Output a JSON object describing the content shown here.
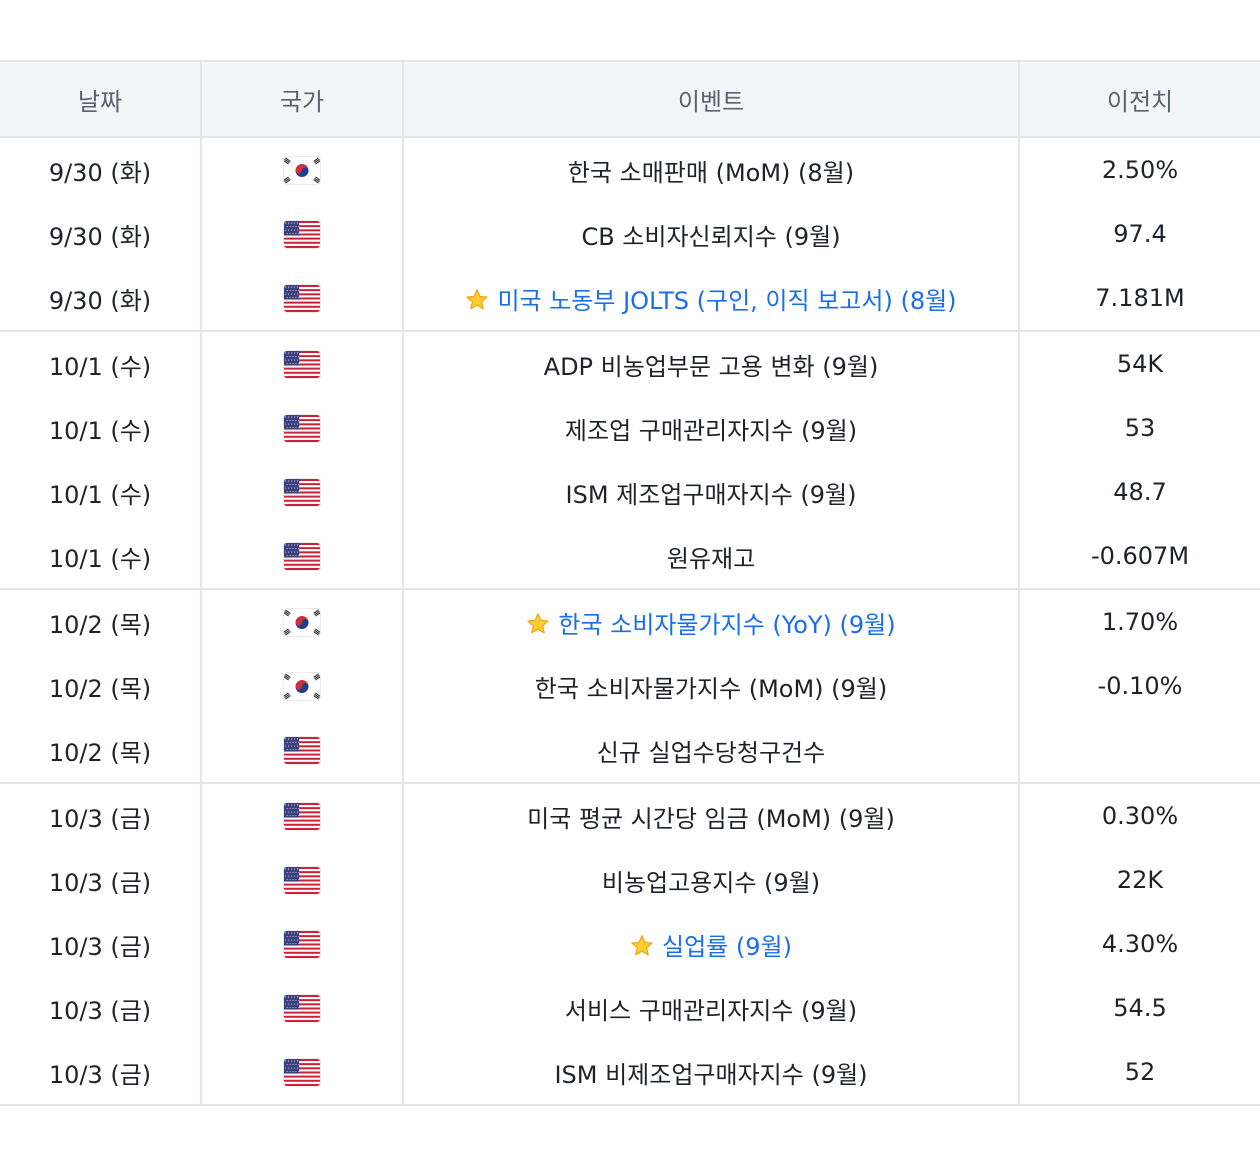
{
  "header": {
    "date": "날짜",
    "country": "국가",
    "event": "이벤트",
    "previous": "이전치"
  },
  "rows": [
    {
      "date": "9/30 (화)",
      "country": "KR",
      "event": "한국 소매판매 (MoM) (8월)",
      "previous": "2.50%",
      "highlight": false,
      "group_start": true
    },
    {
      "date": "9/30 (화)",
      "country": "US",
      "event": "CB 소비자신뢰지수 (9월)",
      "previous": "97.4",
      "highlight": false,
      "group_start": false
    },
    {
      "date": "9/30 (화)",
      "country": "US",
      "event": "미국 노동부 JOLTS (구인, 이직 보고서) (8월)",
      "previous": "7.181M",
      "highlight": true,
      "group_start": false
    },
    {
      "date": "10/1 (수)",
      "country": "US",
      "event": "ADP 비농업부문 고용 변화 (9월)",
      "previous": "54K",
      "highlight": false,
      "group_start": true
    },
    {
      "date": "10/1 (수)",
      "country": "US",
      "event": "제조업 구매관리자지수 (9월)",
      "previous": "53",
      "highlight": false,
      "group_start": false
    },
    {
      "date": "10/1 (수)",
      "country": "US",
      "event": "ISM 제조업구매자지수 (9월)",
      "previous": "48.7",
      "highlight": false,
      "group_start": false
    },
    {
      "date": "10/1 (수)",
      "country": "US",
      "event": "원유재고",
      "previous": "-0.607M",
      "highlight": false,
      "group_start": false
    },
    {
      "date": "10/2 (목)",
      "country": "KR",
      "event": "한국 소비자물가지수 (YoY) (9월)",
      "previous": "1.70%",
      "highlight": true,
      "group_start": true
    },
    {
      "date": "10/2 (목)",
      "country": "KR",
      "event": "한국 소비자물가지수 (MoM) (9월)",
      "previous": "-0.10%",
      "highlight": false,
      "group_start": false
    },
    {
      "date": "10/2 (목)",
      "country": "US",
      "event": "신규 실업수당청구건수",
      "previous": "",
      "highlight": false,
      "group_start": false
    },
    {
      "date": "10/3 (금)",
      "country": "US",
      "event": "미국 평균 시간당 임금 (MoM) (9월)",
      "previous": "0.30%",
      "highlight": false,
      "group_start": true
    },
    {
      "date": "10/3 (금)",
      "country": "US",
      "event": "비농업고용지수 (9월)",
      "previous": "22K",
      "highlight": false,
      "group_start": false
    },
    {
      "date": "10/3 (금)",
      "country": "US",
      "event": "실업률 (9월)",
      "previous": "4.30%",
      "highlight": true,
      "group_start": false
    },
    {
      "date": "10/3 (금)",
      "country": "US",
      "event": "서비스 구매관리자지수 (9월)",
      "previous": "54.5",
      "highlight": false,
      "group_start": false
    },
    {
      "date": "10/3 (금)",
      "country": "US",
      "event": "ISM 비제조업구매자지수 (9월)",
      "previous": "52",
      "highlight": false,
      "group_start": false
    }
  ],
  "icons": {
    "KR": "south-korea-flag-icon",
    "US": "united-states-flag-icon",
    "star": "star-icon"
  },
  "colors": {
    "highlight_text": "#1a6fe8",
    "header_bg": "#f4f5f8",
    "border": "#e3e6ec"
  }
}
